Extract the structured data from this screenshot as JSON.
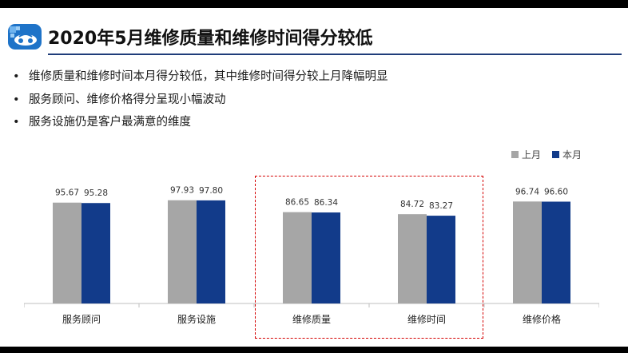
{
  "title": "2020年5月维修质量和维修时间得分较低",
  "bullets": [
    "维修质量和维修时间本月得分较低，其中维修时间得分较上月降幅明显",
    "服务顾问、维修价格得分呈现小幅波动",
    "服务设施仍是客户最满意的维度"
  ],
  "colors": {
    "previous": "#a6a6a6",
    "current": "#123b8a",
    "highlight": "#d40000",
    "accent": "#1f3d7a"
  },
  "chart_data": {
    "type": "bar",
    "categories": [
      "服务顾问",
      "服务设施",
      "维修质量",
      "维修时间",
      "维修价格"
    ],
    "series": [
      {
        "name": "上月",
        "values": [
          95.67,
          97.93,
          86.65,
          84.72,
          96.74
        ]
      },
      {
        "name": "本月",
        "values": [
          95.28,
          97.8,
          86.34,
          83.27,
          96.6
        ]
      }
    ],
    "ylim": [
      0,
      100
    ],
    "legend": "top-right",
    "grid": false,
    "data_labels": true,
    "highlighted_categories": [
      "维修质量",
      "维修时间"
    ]
  }
}
